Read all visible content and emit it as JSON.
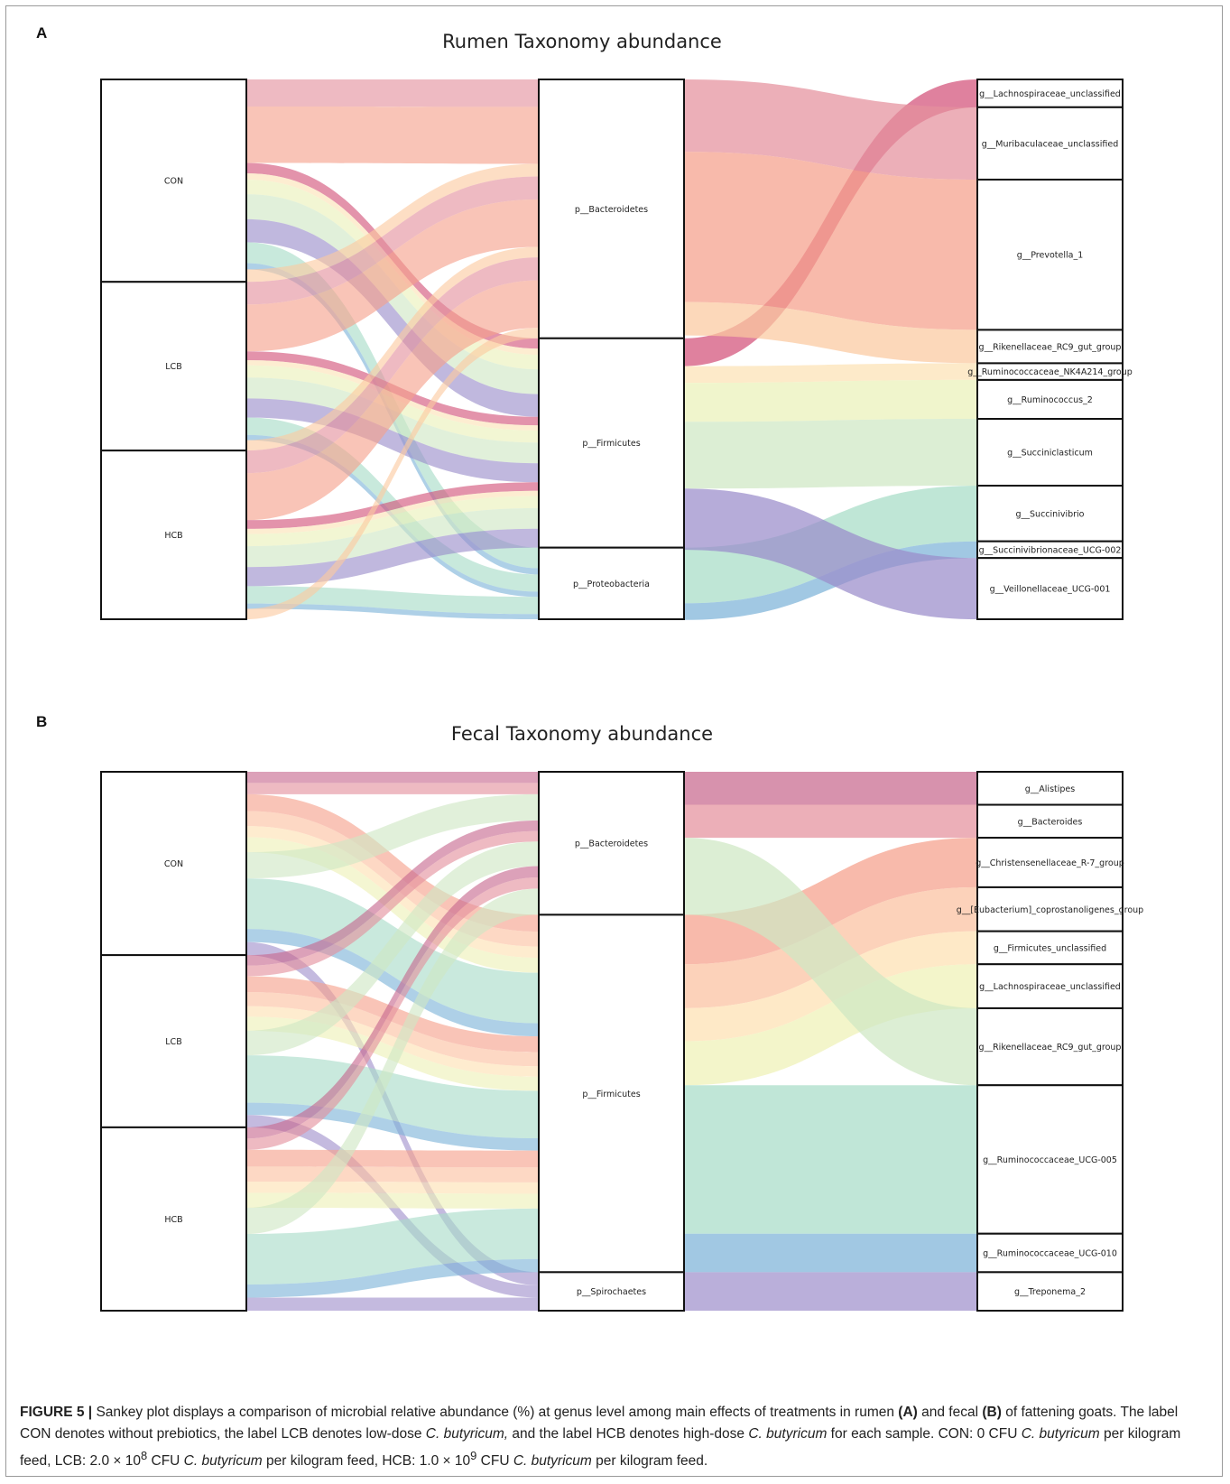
{
  "panels": [
    {
      "letter": "A",
      "title": "Rumen Taxonomy abundance",
      "left_nodes": [
        "CON",
        "LCB",
        "HCB"
      ],
      "left_weights": [
        36,
        30,
        30
      ],
      "mid_nodes": [
        "p__Bacteroidetes",
        "p__Firmicutes",
        "p__Proteobacteria"
      ],
      "mid_weights": [
        47,
        38,
        13
      ],
      "right_nodes": [
        {
          "label": "g__Lachnospiraceae_unclassified",
          "phylum": 1,
          "weight": 5,
          "color": "#d25078"
        },
        {
          "label": "g__Muribaculaceae_unclassified",
          "phylum": 0,
          "weight": 13,
          "color": "#e4909c"
        },
        {
          "label": "g__Prevotella_1",
          "phylum": 0,
          "weight": 27,
          "color": "#f5a08a"
        },
        {
          "label": "g__Rikenellaceae_RC9_gut_group",
          "phylum": 0,
          "weight": 6,
          "color": "#fbc9a0"
        },
        {
          "label": "g__Ruminococcaceae_NK4A214_group",
          "phylum": 1,
          "weight": 3,
          "color": "#fce2b4"
        },
        {
          "label": "g__Ruminococcus_2",
          "phylum": 1,
          "weight": 7,
          "color": "#eaf1b8"
        },
        {
          "label": "g__Succiniclasticum",
          "phylum": 1,
          "weight": 12,
          "color": "#cfe7c3"
        },
        {
          "label": "g__Succinivibrio",
          "phylum": 2,
          "weight": 10,
          "color": "#a6dcc6"
        },
        {
          "label": "g__Succinivibrionaceae_UCG-002",
          "phylum": 2,
          "weight": 3,
          "color": "#7db3d8"
        },
        {
          "label": "g__Veillonellaceae_UCG-001",
          "phylum": 1,
          "weight": 11,
          "color": "#9a8cca"
        }
      ],
      "left_link_order": [
        1,
        2,
        0,
        4,
        5,
        6,
        9,
        7,
        8,
        3
      ]
    },
    {
      "letter": "B",
      "title": "Fecal Taxonomy abundance",
      "left_nodes": [
        "CON",
        "LCB",
        "HCB"
      ],
      "left_weights": [
        33,
        31,
        33
      ],
      "mid_nodes": [
        "p__Bacteroidetes",
        "p__Firmicutes",
        "p__Spirochaetes"
      ],
      "mid_weights": [
        26,
        65,
        7
      ],
      "right_nodes": [
        {
          "label": "g__Alistipes",
          "phylum": 0,
          "weight": 6,
          "color": "#c7688e"
        },
        {
          "label": "g__Bacteroides",
          "phylum": 0,
          "weight": 6,
          "color": "#e4909c"
        },
        {
          "label": "g__Christensenellaceae_R-7_group",
          "phylum": 1,
          "weight": 9,
          "color": "#f5a08a"
        },
        {
          "label": "g__[Eubacterium]_coprostanoligenes_group",
          "phylum": 1,
          "weight": 8,
          "color": "#fbc0a0"
        },
        {
          "label": "g__Firmicutes_unclassified",
          "phylum": 1,
          "weight": 6,
          "color": "#fde0b2"
        },
        {
          "label": "g__Lachnospiraceae_unclassified",
          "phylum": 1,
          "weight": 8,
          "color": "#eef1b6"
        },
        {
          "label": "g__Rikenellaceae_RC9_gut_group",
          "phylum": 0,
          "weight": 14,
          "color": "#cfe7c3"
        },
        {
          "label": "g__Ruminococcaceae_UCG-005",
          "phylum": 1,
          "weight": 27,
          "color": "#a8dcc8"
        },
        {
          "label": "g__Ruminococcaceae_UCG-010",
          "phylum": 1,
          "weight": 7,
          "color": "#7db3d8"
        },
        {
          "label": "g__Treponema_2",
          "phylum": 2,
          "weight": 7,
          "color": "#a090cc"
        }
      ],
      "left_link_order": [
        0,
        1,
        2,
        3,
        4,
        5,
        6,
        7,
        8,
        9
      ]
    }
  ],
  "caption": {
    "label": "FIGURE 5 |",
    "sentence_1": "Sankey plot displays a comparison of microbial relative abundance (%) at genus level among main effects of treatments in rumen",
    "ref_a": "(A)",
    "and_fecal": "and fecal",
    "ref_b": "(B)",
    "of_goats": "of fattening goats. The label CON denotes without prebiotics, the label LCB denotes low-dose",
    "species": "C. butyricum,",
    "and_hcb": "and the label HCB denotes high-dose",
    "species_2": "C. butyricum",
    "for_each": "for each sample. CON: 0 CFU",
    "species_3": "C. butyricum",
    "lcb_dose": "per kilogram feed, LCB: 2.0 × 10",
    "exp_8": "8",
    "cfu_1": "CFU",
    "species_4": "C. butyricum",
    "hcb_dose": "per kilogram feed, HCB: 1.0 × 10",
    "exp_9": "9",
    "cfu_2": "CFU",
    "species_5": "C. butyricum",
    "end": "per kilogram feed."
  }
}
